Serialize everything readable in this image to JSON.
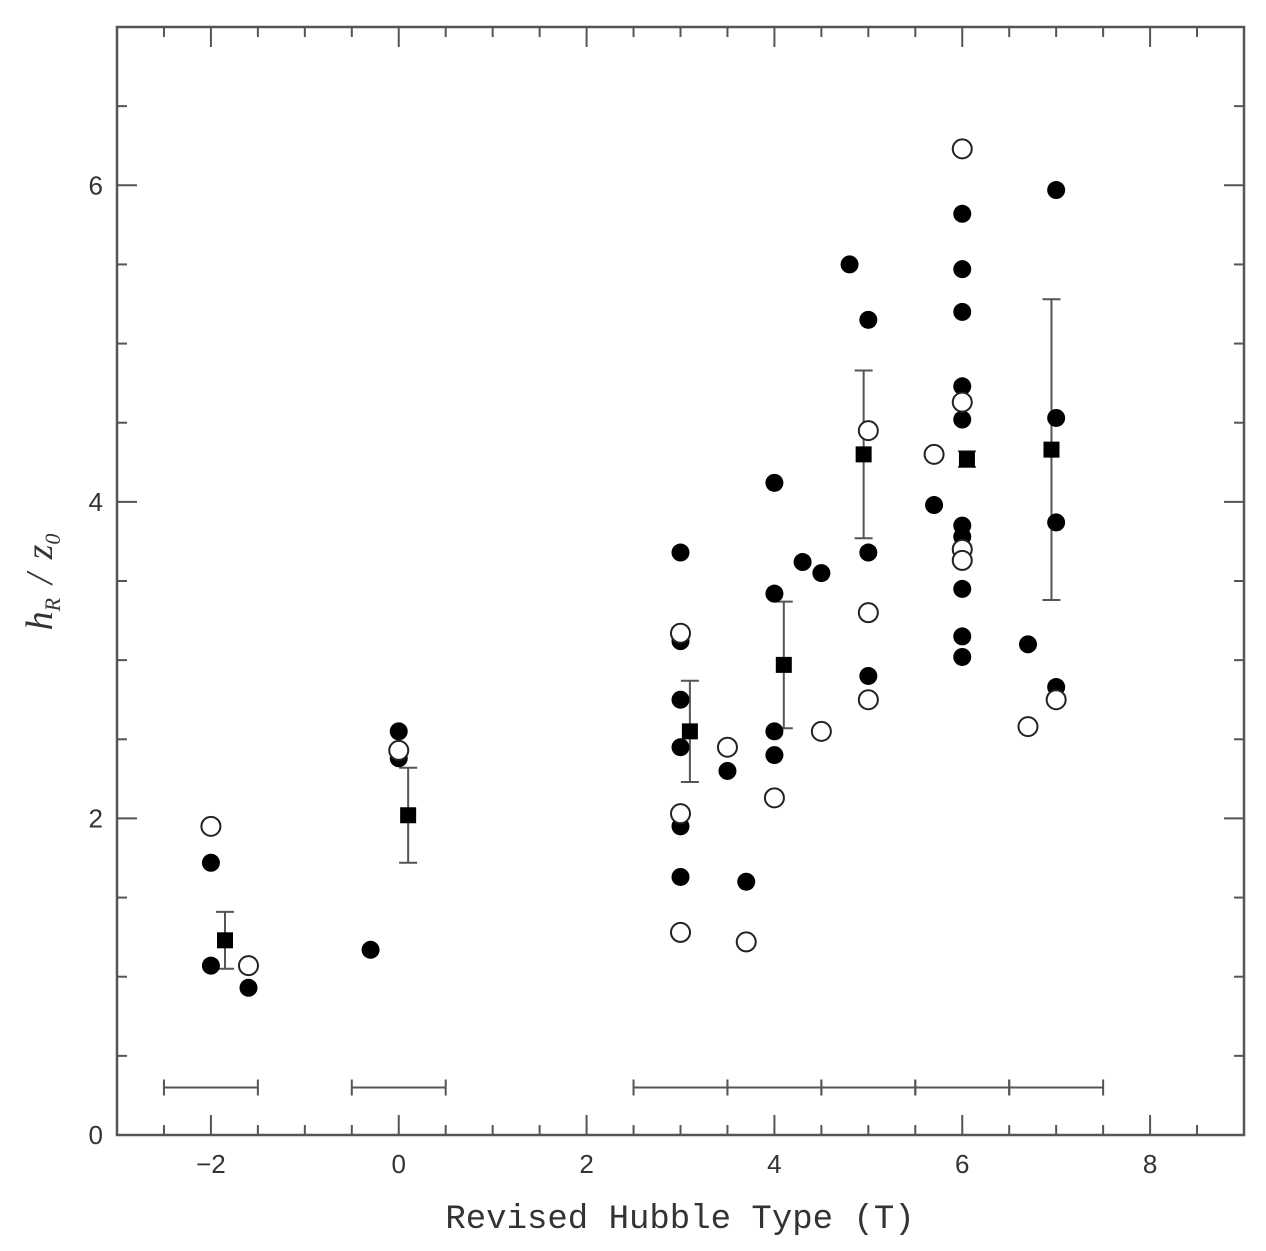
{
  "chart_data": {
    "type": "scatter",
    "xlabel": "Revised Hubble Type (T)",
    "ylabel": "h_R / z_0",
    "ylabel_parts": {
      "h": "h",
      "h_sub": "R",
      "slash": "/",
      "z": "z",
      "z_sub": "0"
    },
    "xlim": [
      -3,
      9
    ],
    "ylim": [
      0,
      7
    ],
    "xticks": [
      -2,
      0,
      2,
      4,
      6,
      8
    ],
    "yticks": [
      0,
      2,
      4,
      6
    ],
    "grid": false,
    "series": [
      {
        "marker": "filled-circle",
        "points": [
          [
            -2,
            1.72
          ],
          [
            -2,
            1.07
          ],
          [
            -1.6,
            0.93
          ],
          [
            -0.3,
            1.17
          ],
          [
            0,
            2.55
          ],
          [
            0,
            2.38
          ],
          [
            3,
            3.68
          ],
          [
            3,
            3.12
          ],
          [
            3,
            2.75
          ],
          [
            3,
            2.45
          ],
          [
            3,
            1.95
          ],
          [
            3,
            1.63
          ],
          [
            3.5,
            2.3
          ],
          [
            3.7,
            1.6
          ],
          [
            4,
            4.12
          ],
          [
            4,
            3.42
          ],
          [
            4,
            2.55
          ],
          [
            4,
            2.4
          ],
          [
            4.3,
            3.62
          ],
          [
            4.5,
            3.55
          ],
          [
            4.8,
            5.5
          ],
          [
            5,
            5.15
          ],
          [
            5,
            3.68
          ],
          [
            5,
            2.9
          ],
          [
            5.7,
            3.98
          ],
          [
            6,
            5.82
          ],
          [
            6,
            5.47
          ],
          [
            6,
            5.2
          ],
          [
            6,
            4.73
          ],
          [
            6,
            4.52
          ],
          [
            6,
            3.85
          ],
          [
            6,
            3.78
          ],
          [
            6,
            3.45
          ],
          [
            6,
            3.15
          ],
          [
            6,
            3.02
          ],
          [
            6.7,
            3.1
          ],
          [
            7,
            5.97
          ],
          [
            7,
            4.53
          ],
          [
            7,
            3.87
          ],
          [
            7,
            2.83
          ]
        ]
      },
      {
        "marker": "open-circle",
        "points": [
          [
            -2,
            1.95
          ],
          [
            -1.6,
            1.07
          ],
          [
            0,
            2.43
          ],
          [
            3,
            3.17
          ],
          [
            3,
            2.03
          ],
          [
            3,
            1.28
          ],
          [
            3.5,
            2.45
          ],
          [
            3.7,
            1.22
          ],
          [
            4,
            2.13
          ],
          [
            4.5,
            2.55
          ],
          [
            5,
            4.45
          ],
          [
            5,
            3.3
          ],
          [
            5,
            2.75
          ],
          [
            5.7,
            4.3
          ],
          [
            6,
            6.23
          ],
          [
            6,
            4.63
          ],
          [
            6,
            3.7
          ],
          [
            6,
            3.63
          ],
          [
            6.7,
            2.58
          ],
          [
            7,
            2.75
          ]
        ]
      },
      {
        "marker": "filled-square",
        "errorbars": true,
        "points": [
          {
            "x": -1.85,
            "y": 1.23,
            "err": 0.18
          },
          {
            "x": 0.1,
            "y": 2.02,
            "err": 0.3
          },
          {
            "x": 3.1,
            "y": 2.55,
            "err": 0.32
          },
          {
            "x": 4.1,
            "y": 2.97,
            "err": 0.4
          },
          {
            "x": 4.95,
            "y": 4.3,
            "err": 0.53
          },
          {
            "x": 6.05,
            "y": 4.27,
            "err": 0.05
          },
          {
            "x": 6.95,
            "y": 4.33,
            "err": 0.95
          }
        ]
      }
    ],
    "bin_ranges": [
      {
        "y": 0.3,
        "x": [
          -2.5,
          -1.5
        ]
      },
      {
        "y": 0.3,
        "x": [
          -0.5,
          0.5
        ]
      },
      {
        "y": 0.3,
        "x": [
          2.5,
          3.5
        ]
      },
      {
        "y": 0.3,
        "x": [
          3.5,
          4.5
        ]
      },
      {
        "y": 0.3,
        "x": [
          4.5,
          5.5
        ]
      },
      {
        "y": 0.3,
        "x": [
          5.5,
          6.5
        ]
      },
      {
        "y": 0.3,
        "x": [
          6.5,
          7.5
        ]
      }
    ]
  }
}
